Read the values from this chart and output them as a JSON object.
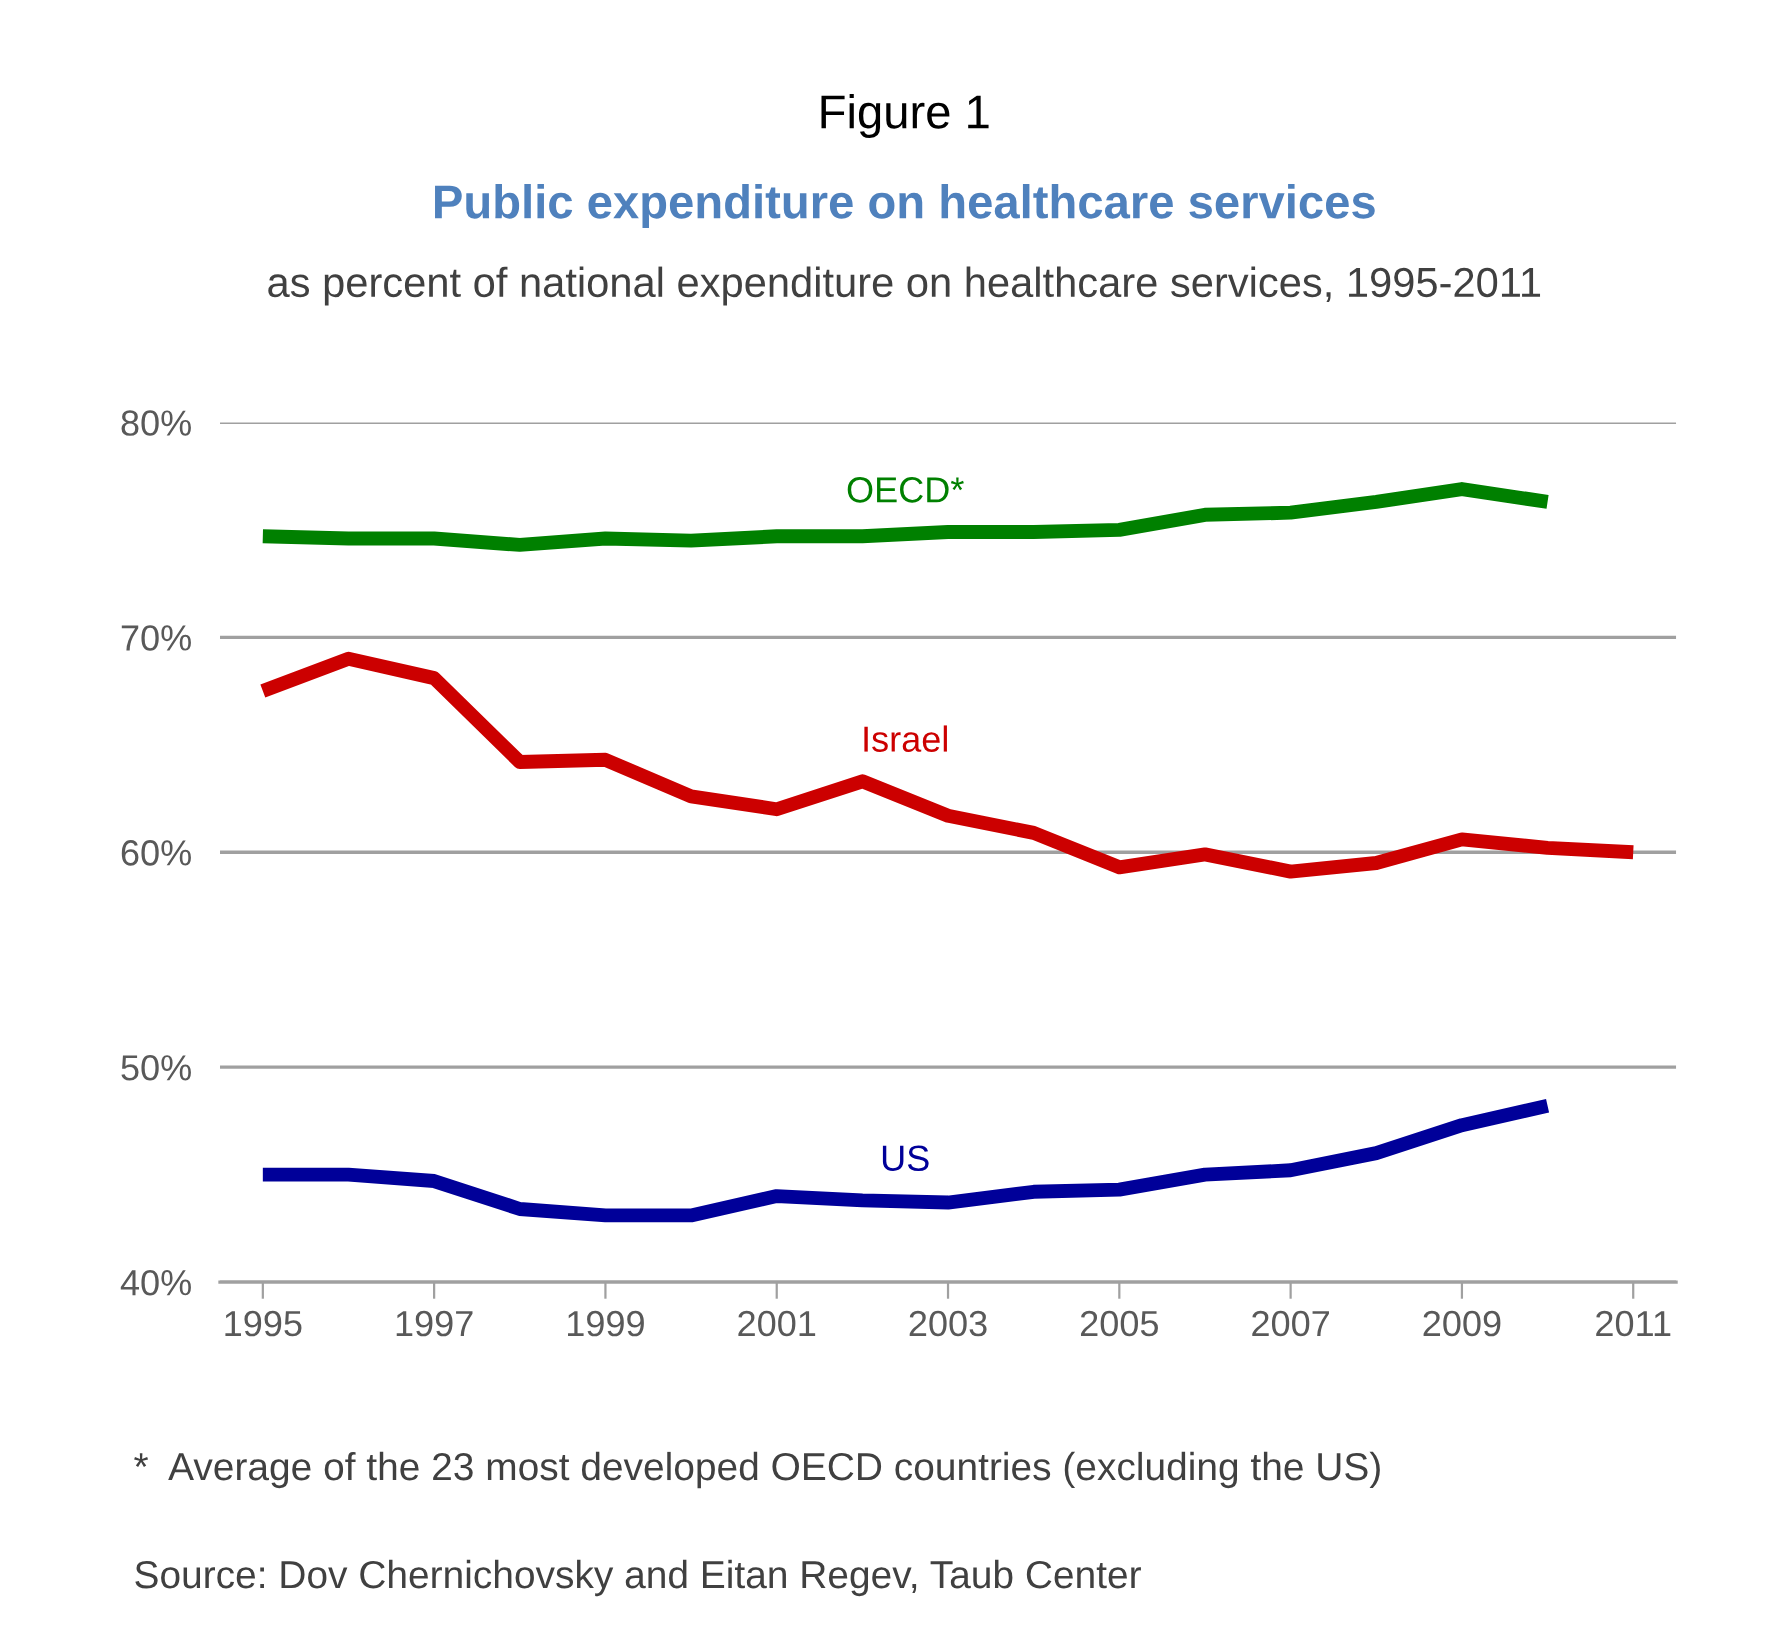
{
  "chart_data": {
    "type": "line",
    "title": "Figure 1",
    "subtitle": "Public expenditure on healthcare services",
    "ylabel": "as percent of national expenditure on healthcare services, 1995-2011",
    "annotations": [
      "*  Average of the 23 most developed OECD countries (excluding the US)",
      "Source: Dov Chernichovsky and Eitan Regev, Taub Center"
    ],
    "x": [
      1995,
      1996,
      1997,
      1998,
      1999,
      2000,
      2001,
      2002,
      2003,
      2004,
      2005,
      2006,
      2007,
      2008,
      2009,
      2010,
      2011
    ],
    "series": [
      {
        "name": "OECD*",
        "color": "#008000",
        "values": [
          74.7,
          74.6,
          74.6,
          74.3,
          74.6,
          74.5,
          74.7,
          74.7,
          74.9,
          74.9,
          75.0,
          75.7,
          75.8,
          76.3,
          76.9,
          76.3,
          null
        ]
      },
      {
        "name": "Israel",
        "color": "#cc0000",
        "values": [
          67.5,
          69.0,
          68.1,
          64.2,
          64.3,
          62.6,
          62.0,
          63.3,
          61.7,
          60.9,
          59.3,
          59.9,
          59.1,
          59.5,
          60.6,
          60.2,
          60.0
        ]
      },
      {
        "name": "US",
        "color": "#000099",
        "values": [
          45.0,
          45.0,
          44.7,
          43.4,
          43.1,
          43.1,
          44.0,
          43.8,
          43.7,
          44.2,
          44.3,
          45.0,
          45.2,
          46.0,
          47.3,
          48.2,
          null
        ]
      }
    ],
    "xlim": [
      1994.5,
      2011.5
    ],
    "xticks": [
      1995,
      1997,
      1999,
      2001,
      2003,
      2005,
      2007,
      2009,
      2011
    ],
    "ylim": [
      40,
      80
    ],
    "yticks": [
      {
        "value": 40,
        "label": "40%"
      },
      {
        "value": 50,
        "label": "50%"
      },
      {
        "value": 60,
        "label": "60%"
      },
      {
        "value": 70,
        "label": "70%"
      },
      {
        "value": 80,
        "label": "80%"
      }
    ],
    "grid": "y",
    "legend": false,
    "marker": "none",
    "line_style": "solid"
  }
}
